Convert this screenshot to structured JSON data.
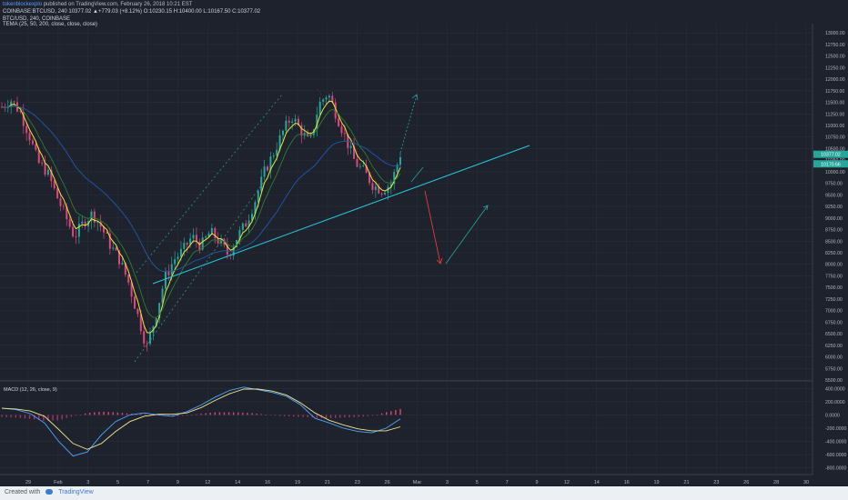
{
  "header": {
    "user": "tokenblockexplo",
    "published": "published on TradingView.com, February 26, 2018 10:21 EST",
    "symbol_line": "COINBASE:BTCUSD, 240",
    "ohlc": "10377.02 ▲+779.03 (+8.12%) O:10230.15 H:10400.00 L:10167.50 C:10377.02",
    "pair": "BTC/USD, 240, COINBASE",
    "tema": "TEMA (25, 50, 200, close, close, close)"
  },
  "macd_label": "MACD (12, 26, close, 9)",
  "footer": {
    "created": "Created with",
    "brand": "TradingView"
  },
  "colors": {
    "bg": "#1e222d",
    "grid": "#2a2e39",
    "up": "#26a69a",
    "down": "#e0457b",
    "tema_yellow": "#e8e83a",
    "tema_green": "#2e7d32",
    "tema_blue": "#1e5aa8",
    "trendline": "#26c6da",
    "price_label": "#26a69a",
    "macd_line": "#4da6ff",
    "signal_line": "#f0e68c"
  },
  "price_labels": {
    "current": "10377.02",
    "secondary": "10170.66"
  },
  "chart_data": {
    "type": "candlestick",
    "x_tick_labels": [
      "29",
      "Feb",
      "3",
      "5",
      "7",
      "9",
      "12",
      "14",
      "16",
      "19",
      "21",
      "23",
      "26",
      "Mar",
      "3",
      "5",
      "7",
      "9",
      "12",
      "14",
      "16",
      "19",
      "21",
      "23",
      "26",
      "28",
      "30"
    ],
    "price_axis_ticks": [
      "13000.00",
      "12750.00",
      "12500.00",
      "12250.00",
      "12000.00",
      "11750.00",
      "11500.00",
      "11250.00",
      "11000.00",
      "10750.00",
      "10500.00",
      "10250.00",
      "10000.00",
      "9750.00",
      "9500.00",
      "9250.00",
      "9000.00",
      "8750.00",
      "8500.00",
      "8250.00",
      "8000.00",
      "7750.00",
      "7500.00",
      "7250.00",
      "7000.00",
      "6750.00",
      "6500.00",
      "6250.00",
      "6000.00",
      "5750.00",
      "5500.00"
    ],
    "price_ylim": [
      5500,
      13200
    ],
    "price_path": [
      11400,
      11550,
      11300,
      10800,
      10200,
      10000,
      9500,
      9050,
      8600,
      8900,
      9100,
      8800,
      8400,
      8100,
      7600,
      6900,
      6200,
      6900,
      7700,
      8100,
      8300,
      8600,
      8400,
      8700,
      8500,
      8200,
      8600,
      8900,
      9400,
      10000,
      10400,
      10850,
      11200,
      10900,
      10600,
      11450,
      11700,
      11200,
      10700,
      10200,
      10000,
      9700,
      9600,
      9750,
      10377
    ],
    "macd_axis_ticks": [
      "400.0000",
      "200.0000",
      "0.0000",
      "-200.0000",
      "-400.0000",
      "-600.0000",
      "-800.0000"
    ],
    "macd_ylim": [
      -900,
      500
    ],
    "macd_line": [
      100,
      80,
      20,
      -120,
      -400,
      -620,
      -560,
      -300,
      -100,
      0,
      30,
      0,
      -20,
      50,
      150,
      270,
      370,
      420,
      380,
      340,
      280,
      150,
      -50,
      -120,
      -200,
      -250,
      -270,
      -200,
      -60
    ],
    "signal_line": [
      100,
      90,
      60,
      -20,
      -220,
      -430,
      -520,
      -430,
      -250,
      -100,
      -20,
      10,
      10,
      30,
      110,
      220,
      320,
      390,
      390,
      360,
      300,
      180,
      30,
      -80,
      -150,
      -210,
      -240,
      -240,
      -180
    ],
    "macd_histogram": [
      -30,
      -40,
      -60,
      -90,
      -80,
      -20,
      30,
      50,
      40,
      20,
      15,
      -10,
      -25,
      -10,
      20,
      40,
      40,
      35,
      20,
      -10,
      -20,
      -30,
      -40,
      -50,
      -40,
      -30,
      -15,
      40,
      90
    ]
  }
}
